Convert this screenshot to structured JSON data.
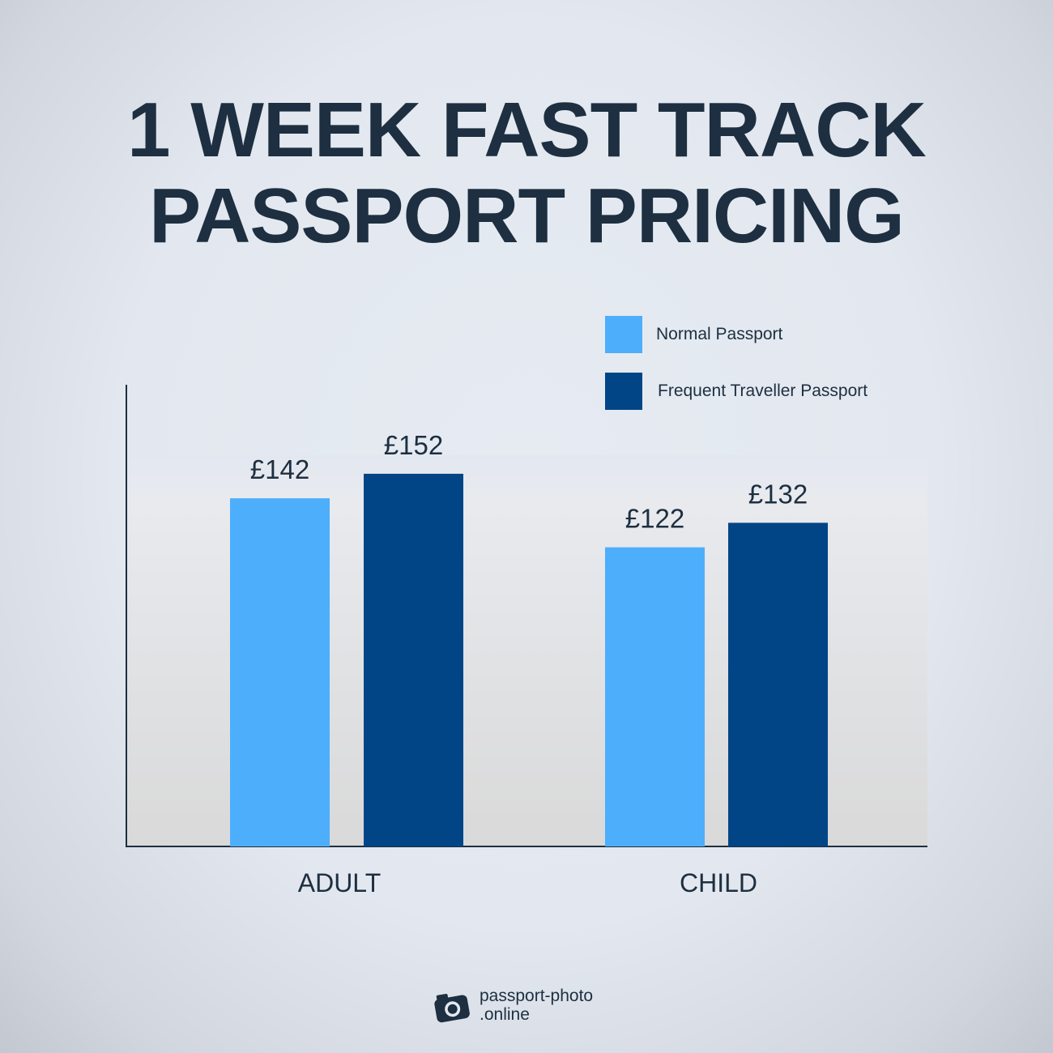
{
  "title_lines": [
    "1 WEEK FAST TRACK",
    "PASSPORT PRICING"
  ],
  "legend": [
    {
      "label": "Normal Passport",
      "color": "#4daefc"
    },
    {
      "label": "Frequent Traveller Passport",
      "color": "#014587"
    }
  ],
  "brand": {
    "line1": "passport-photo",
    "line2": ".online",
    "icon": "camera-icon"
  },
  "chart_data": {
    "type": "bar",
    "title": "1 WEEK FAST TRACK PASSPORT PRICING",
    "categories": [
      "ADULT",
      "CHILD"
    ],
    "series": [
      {
        "name": "Normal Passport",
        "values": [
          142,
          122
        ],
        "labels": [
          "£142",
          "£122"
        ],
        "color": "#4daefc"
      },
      {
        "name": "Frequent Traveller Passport",
        "values": [
          152,
          132
        ],
        "labels": [
          "£152",
          "£132"
        ],
        "color": "#014587"
      }
    ],
    "ylim": [
      0,
      185
    ],
    "grid": false,
    "legend_position": "top-right"
  }
}
